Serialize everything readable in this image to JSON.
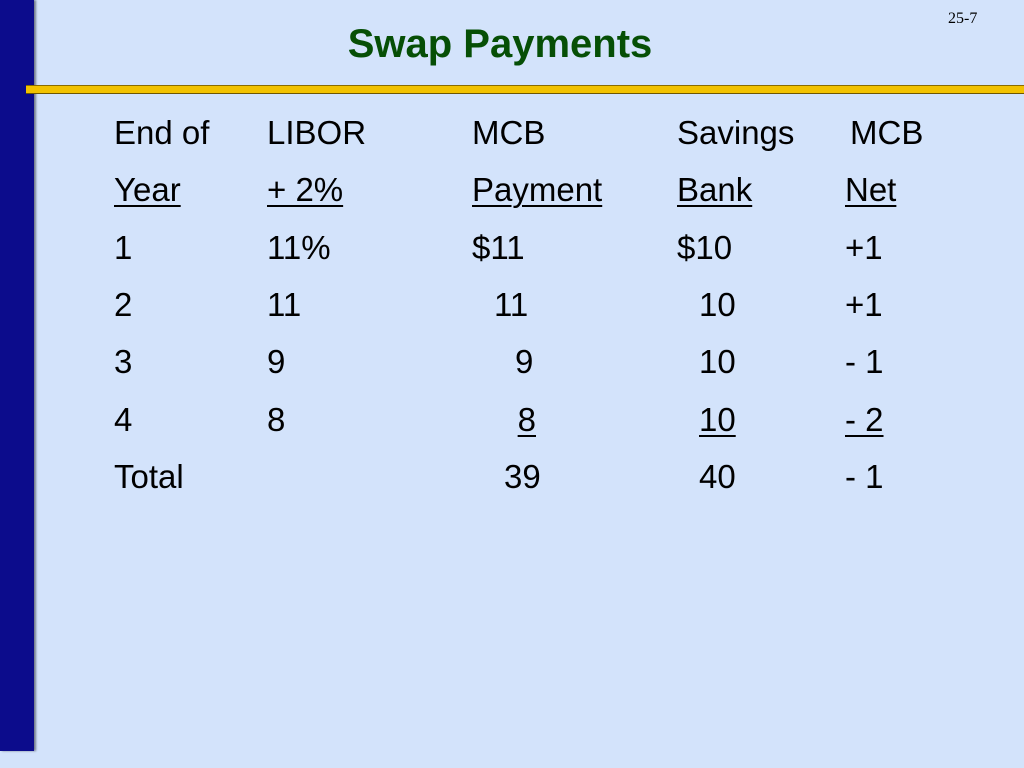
{
  "page_number": "25-7",
  "title": "Swap Payments",
  "colors": {
    "background": "#d3e3fb",
    "left_bar": "#0c0c8c",
    "rule": "#f2c200",
    "title": "#064f06"
  },
  "table": {
    "header_line1": [
      "End of",
      "LIBOR",
      "MCB",
      "Savings",
      "MCB"
    ],
    "header_line2": [
      "Year",
      "+ 2%",
      "Payment",
      "Bank",
      "Net"
    ],
    "rows": [
      {
        "year": "1",
        "libor": "11%",
        "mcb_payment": "$11",
        "savings_bank": "$10",
        "mcb_net": "+1"
      },
      {
        "year": "2",
        "libor": "11",
        "mcb_payment": "11",
        "savings_bank": "10",
        "mcb_net": "+1"
      },
      {
        "year": "3",
        "libor": "9",
        "mcb_payment": "9",
        "savings_bank": "10",
        "mcb_net": "- 1"
      },
      {
        "year": "4",
        "libor": "8",
        "mcb_payment": "8",
        "savings_bank": "10",
        "mcb_net": "- 2"
      }
    ],
    "total": {
      "label": "Total",
      "mcb_payment": "39",
      "savings_bank": "40",
      "mcb_net": "- 1"
    }
  }
}
